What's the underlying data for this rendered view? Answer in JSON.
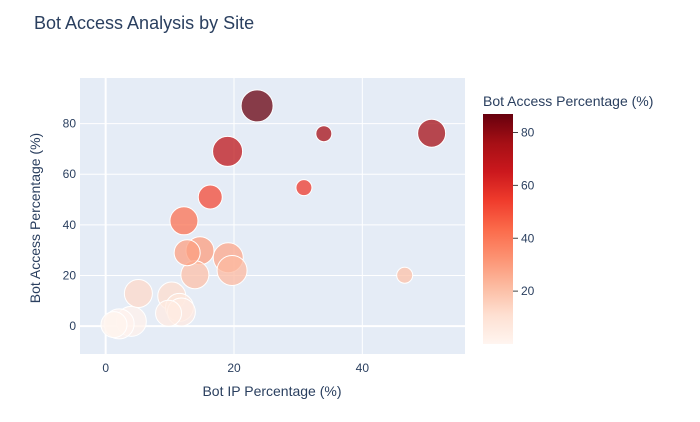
{
  "chart_data": {
    "type": "scatter",
    "title": "Bot Access Analysis by Site",
    "xlabel": "Bot IP Percentage (%)",
    "ylabel": "Bot Access Percentage (%)",
    "xlim": [
      -4,
      56
    ],
    "ylim": [
      -11,
      98
    ],
    "x_ticks": [
      0,
      20,
      40
    ],
    "y_ticks": [
      0,
      20,
      40,
      60,
      80
    ],
    "colorbar": {
      "title": "Bot Access Percentage (%)",
      "min": 0,
      "max": 87,
      "ticks": [
        20,
        40,
        60,
        80
      ]
    },
    "colors": {
      "plot_bg": "#e5ecf6",
      "grid": "#ffffff",
      "text": "#2a3f5f"
    },
    "points": [
      {
        "x": 23.6,
        "y": 87.0,
        "size": 16
      },
      {
        "x": 34.0,
        "y": 76.0,
        "size": 8
      },
      {
        "x": 50.8,
        "y": 76.2,
        "size": 14
      },
      {
        "x": 19.0,
        "y": 69.0,
        "size": 15
      },
      {
        "x": 30.9,
        "y": 54.7,
        "size": 8
      },
      {
        "x": 16.3,
        "y": 51.0,
        "size": 12
      },
      {
        "x": 12.2,
        "y": 41.6,
        "size": 14
      },
      {
        "x": 12.7,
        "y": 29.0,
        "size": 13
      },
      {
        "x": 14.7,
        "y": 29.8,
        "size": 14
      },
      {
        "x": 19.1,
        "y": 27.0,
        "size": 15
      },
      {
        "x": 13.9,
        "y": 20.3,
        "size": 14
      },
      {
        "x": 19.7,
        "y": 22.0,
        "size": 15
      },
      {
        "x": 46.6,
        "y": 20.1,
        "size": 8
      },
      {
        "x": 5.1,
        "y": 12.9,
        "size": 14
      },
      {
        "x": 10.3,
        "y": 11.9,
        "size": 14
      },
      {
        "x": 11.5,
        "y": 7.4,
        "size": 14
      },
      {
        "x": 9.8,
        "y": 5.1,
        "size": 13
      },
      {
        "x": 11.8,
        "y": 5.6,
        "size": 14
      },
      {
        "x": 4.0,
        "y": 1.9,
        "size": 15
      },
      {
        "x": 2.1,
        "y": 0.9,
        "size": 15
      },
      {
        "x": 1.3,
        "y": 0.6,
        "size": 13
      }
    ]
  }
}
